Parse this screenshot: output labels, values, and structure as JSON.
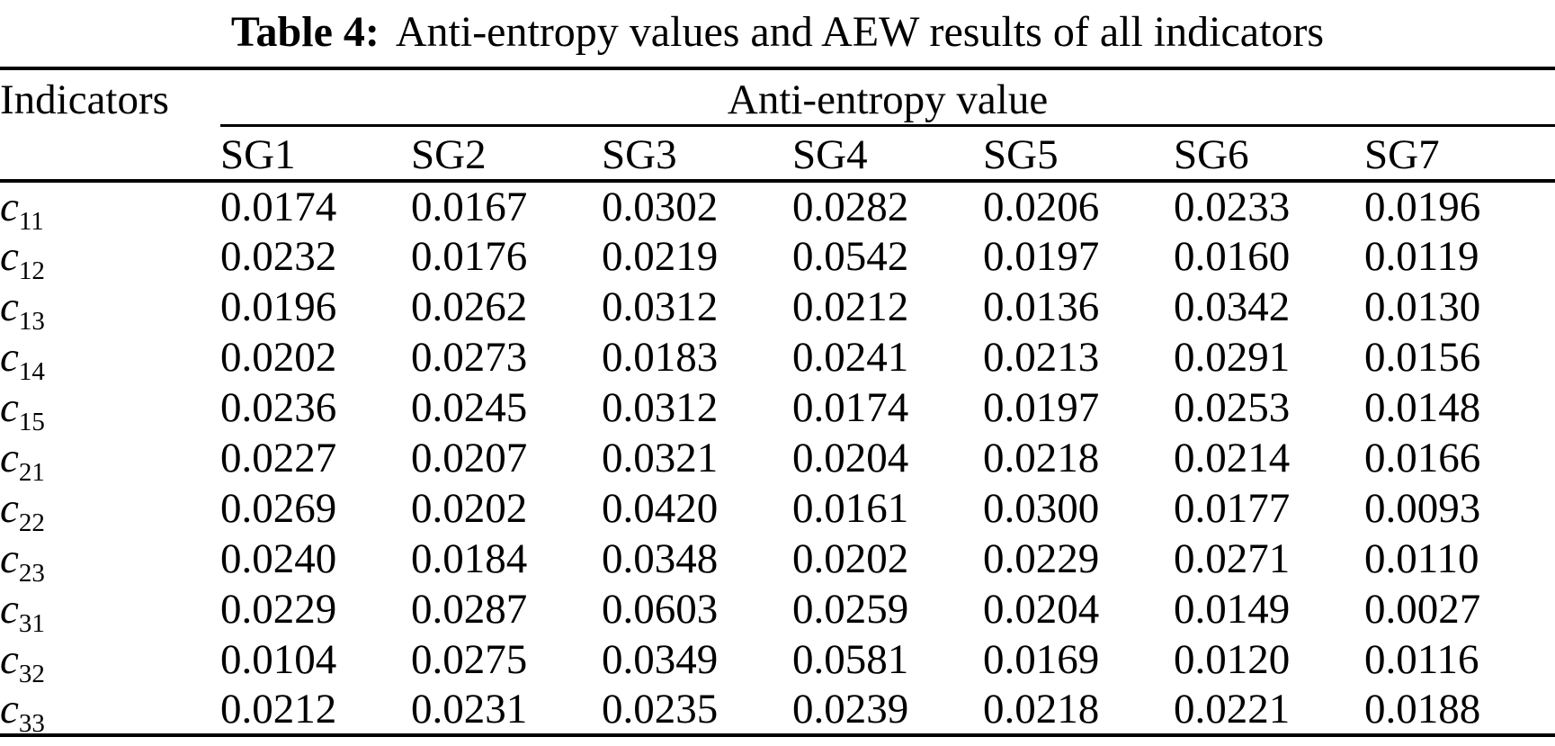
{
  "page": {
    "background": "#ffffff",
    "text_color": "#000000"
  },
  "caption": {
    "label": "Table 4:",
    "text": "Anti-entropy values and AEW results of all indicators"
  },
  "table": {
    "indicators_header": "Indicators",
    "group_header": "Anti-entropy value",
    "columns": [
      "SG1",
      "SG2",
      "SG3",
      "SG4",
      "SG5",
      "SG6",
      "SG7"
    ],
    "rows": [
      {
        "indicator": {
          "base": "c",
          "sub": "11"
        },
        "values": [
          "0.0174",
          "0.0167",
          "0.0302",
          "0.0282",
          "0.0206",
          "0.0233",
          "0.0196"
        ]
      },
      {
        "indicator": {
          "base": "c",
          "sub": "12"
        },
        "values": [
          "0.0232",
          "0.0176",
          "0.0219",
          "0.0542",
          "0.0197",
          "0.0160",
          "0.0119"
        ]
      },
      {
        "indicator": {
          "base": "c",
          "sub": "13"
        },
        "values": [
          "0.0196",
          "0.0262",
          "0.0312",
          "0.0212",
          "0.0136",
          "0.0342",
          "0.0130"
        ]
      },
      {
        "indicator": {
          "base": "c",
          "sub": "14"
        },
        "values": [
          "0.0202",
          "0.0273",
          "0.0183",
          "0.0241",
          "0.0213",
          "0.0291",
          "0.0156"
        ]
      },
      {
        "indicator": {
          "base": "c",
          "sub": "15"
        },
        "values": [
          "0.0236",
          "0.0245",
          "0.0312",
          "0.0174",
          "0.0197",
          "0.0253",
          "0.0148"
        ]
      },
      {
        "indicator": {
          "base": "c",
          "sub": "21"
        },
        "values": [
          "0.0227",
          "0.0207",
          "0.0321",
          "0.0204",
          "0.0218",
          "0.0214",
          "0.0166"
        ]
      },
      {
        "indicator": {
          "base": "c",
          "sub": "22"
        },
        "values": [
          "0.0269",
          "0.0202",
          "0.0420",
          "0.0161",
          "0.0300",
          "0.0177",
          "0.0093"
        ]
      },
      {
        "indicator": {
          "base": "c",
          "sub": "23"
        },
        "values": [
          "0.0240",
          "0.0184",
          "0.0348",
          "0.0202",
          "0.0229",
          "0.0271",
          "0.0110"
        ]
      },
      {
        "indicator": {
          "base": "c",
          "sub": "31"
        },
        "values": [
          "0.0229",
          "0.0287",
          "0.0603",
          "0.0259",
          "0.0204",
          "0.0149",
          "0.0027"
        ]
      },
      {
        "indicator": {
          "base": "c",
          "sub": "32"
        },
        "values": [
          "0.0104",
          "0.0275",
          "0.0349",
          "0.0581",
          "0.0169",
          "0.0120",
          "0.0116"
        ]
      },
      {
        "indicator": {
          "base": "c",
          "sub": "33"
        },
        "values": [
          "0.0212",
          "0.0231",
          "0.0235",
          "0.0239",
          "0.0218",
          "0.0221",
          "0.0188"
        ]
      }
    ]
  }
}
